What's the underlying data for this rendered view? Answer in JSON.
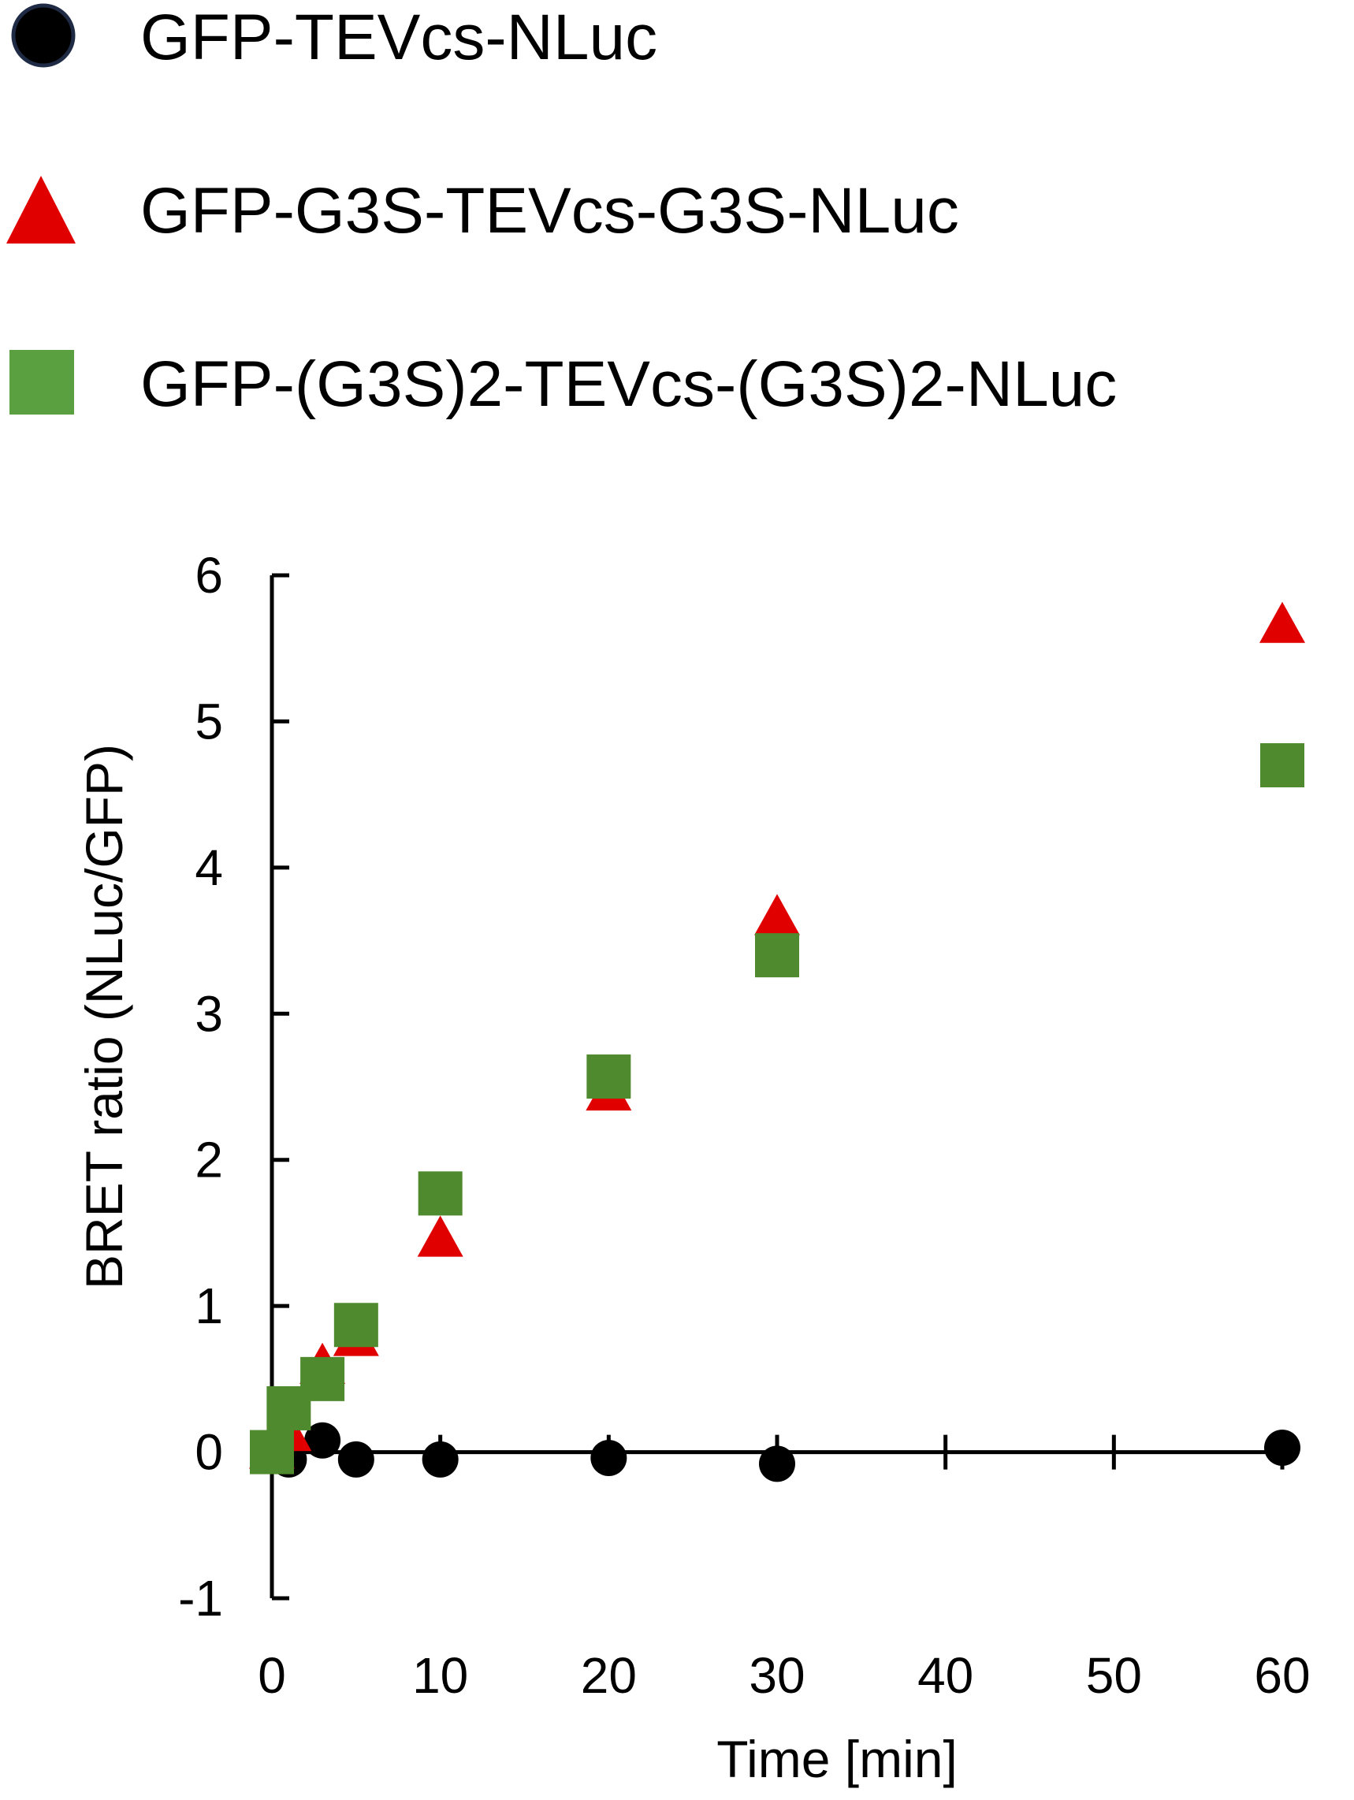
{
  "chart_data": {
    "type": "scatter",
    "xlabel": "Time [min]",
    "ylabel": "BRET ratio (NLuc/GFP)",
    "xlim": [
      0,
      60
    ],
    "ylim": [
      -1,
      6
    ],
    "x_ticks": [
      "0",
      "10",
      "20",
      "30",
      "40",
      "50",
      "60"
    ],
    "y_ticks": [
      "-1",
      "0",
      "1",
      "2",
      "3",
      "4",
      "5",
      "6"
    ],
    "x_tick_values": [
      0,
      10,
      20,
      30,
      40,
      50,
      60
    ],
    "y_tick_values": [
      -1,
      0,
      1,
      2,
      3,
      4,
      5,
      6
    ],
    "legend_position": "top",
    "series": [
      {
        "name": "GFP-TEVcs-NLuc",
        "marker": "circle",
        "color": "#000000",
        "edge_color": "#1f2a44",
        "x": [
          0,
          1,
          3,
          5,
          10,
          20,
          30,
          60
        ],
        "y": [
          0,
          -0.05,
          0.08,
          -0.05,
          -0.05,
          -0.04,
          -0.08,
          0.03
        ]
      },
      {
        "name": "GFP-G3S-TEVcs-G3S-NLuc",
        "marker": "triangle",
        "color": "#e00000",
        "x": [
          0,
          1,
          3,
          5,
          10,
          20,
          30,
          60
        ],
        "y": [
          0,
          0.12,
          0.58,
          0.77,
          1.45,
          2.45,
          3.65,
          5.65
        ]
      },
      {
        "name": "GFP-(G3S)2-TEVcs-(G3S)2-NLuc",
        "marker": "square",
        "color": "#4f8a2e",
        "legend_color": "#5aa040",
        "x": [
          0,
          1,
          3,
          5,
          10,
          20,
          30,
          60
        ],
        "y": [
          0,
          0.3,
          0.5,
          0.87,
          1.77,
          2.57,
          3.4,
          4.7
        ]
      }
    ]
  }
}
